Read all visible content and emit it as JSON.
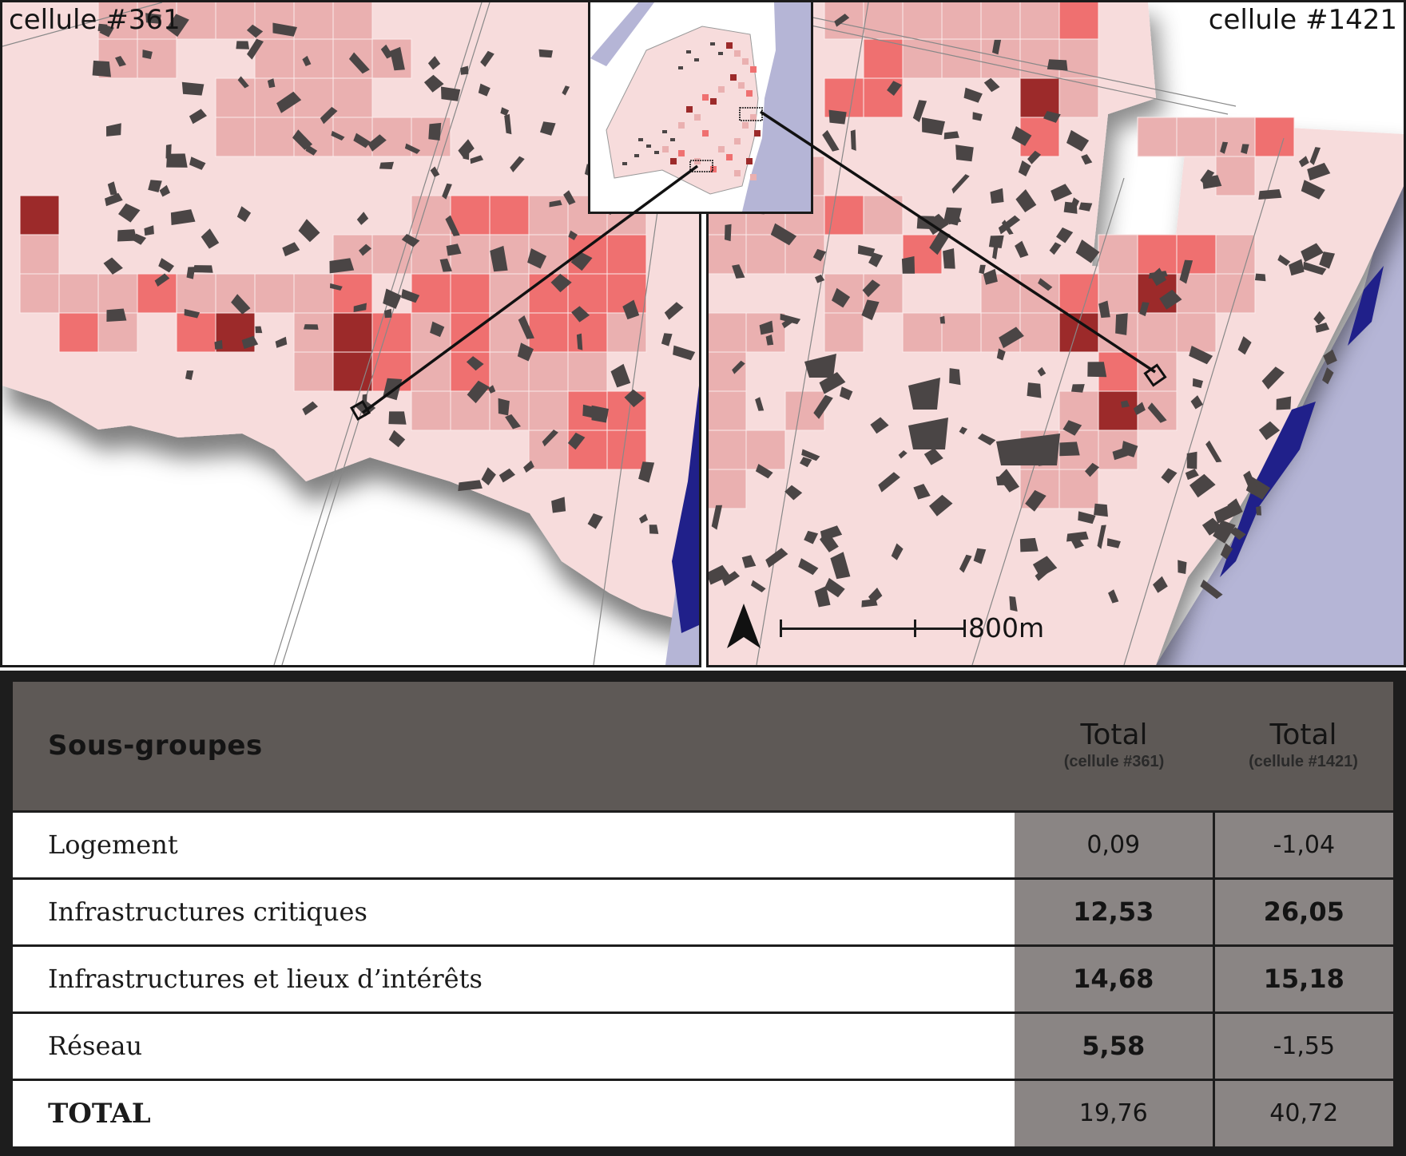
{
  "maps": {
    "left_label": "cellule #361",
    "right_label": "cellule #1421",
    "scale_label": "800m",
    "north_arrow_icon": "north-arrow-icon",
    "colors": {
      "background": "#ffffff",
      "cell_pale": "#f7dcdc",
      "cell_light": "#eab0b0",
      "cell_medium": "#ef7070",
      "cell_dark": "#9c2a2a",
      "building": "#4a4545",
      "water": "#b5b5d6",
      "water_edge": "#20208a",
      "frame": "#1b1b1b"
    }
  },
  "table": {
    "header": {
      "group": "Sous-groupes",
      "total1": "Total",
      "total1_sub": "(cellule #361)",
      "total2": "Total",
      "total2_sub": "(cellule #1421)"
    },
    "rows": [
      {
        "name": "Logement",
        "v1": "0,09",
        "v2": "-1,04"
      },
      {
        "name": "Infrastructures critiques",
        "v1": "12,53",
        "v2": "26,05"
      },
      {
        "name": "Infrastructures et lieux d’intérêts",
        "v1": "14,68",
        "v2": "15,18"
      },
      {
        "name": "Réseau",
        "v1": "5,58",
        "v2": "-1,55"
      },
      {
        "name": "TOTAL",
        "v1": "19,76",
        "v2": "40,72"
      }
    ],
    "colors": {
      "header_bg": "#5e5956",
      "value_bg": "#8a8584",
      "name_bg": "#ffffff",
      "border": "#1d1d1d"
    }
  }
}
